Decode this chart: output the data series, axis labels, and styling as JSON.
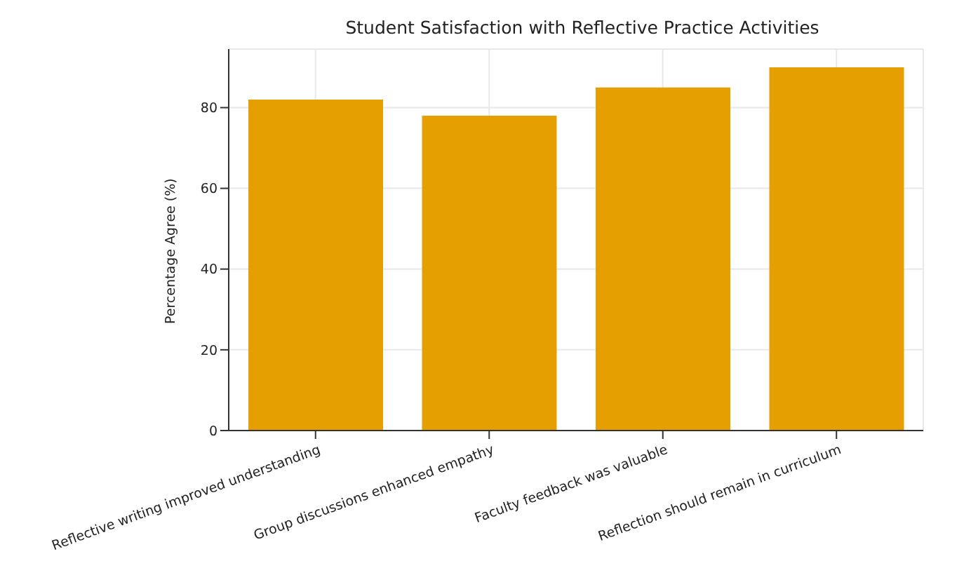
{
  "chart_data": {
    "type": "bar",
    "title": "Student Satisfaction with Reflective Practice Activities",
    "ylabel": "Percentage Agree (%)",
    "categories": [
      "Reflective writing improved understanding",
      "Group discussions enhanced empathy",
      "Faculty feedback was valuable",
      "Reflection should remain in curriculum"
    ],
    "values": [
      82,
      78,
      85,
      90
    ],
    "color": "#e69f00",
    "ylim": [
      0,
      94.5
    ],
    "yticks": [
      0,
      20,
      40,
      60,
      80
    ],
    "grid": true
  }
}
